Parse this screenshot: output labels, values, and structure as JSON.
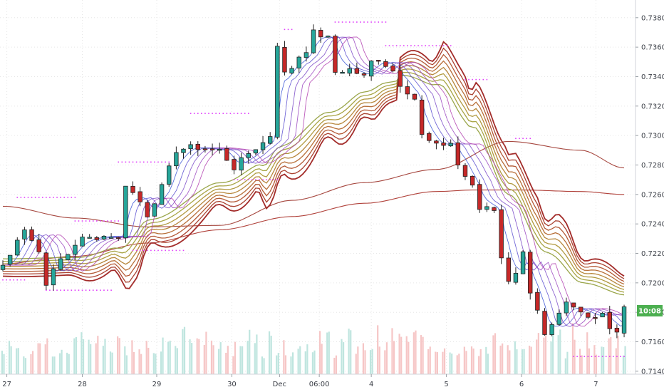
{
  "chart_data": {
    "type": "candlestick",
    "y_ticks": [
      "0.71400",
      "0.71600",
      "0.71800",
      "0.72000",
      "0.72200",
      "0.72400",
      "0.72600",
      "0.72800",
      "0.73000",
      "0.73200",
      "0.73400",
      "0.73600",
      "0.73800"
    ],
    "ylim": [
      0.7138,
      0.7392
    ],
    "x_ticks": [
      {
        "label": "27",
        "t": 0.55
      },
      {
        "label": "28",
        "t": 11.0
      },
      {
        "label": "29",
        "t": 21.3
      },
      {
        "label": "30",
        "t": 31.7
      },
      {
        "label": "Dec",
        "t": 38.3
      },
      {
        "label": "06:00",
        "t": 43.8
      },
      {
        "label": "4",
        "t": 51.0
      },
      {
        "label": "5",
        "t": 61.4
      },
      {
        "label": "6",
        "t": 71.8
      },
      {
        "label": "7",
        "t": 82.1
      }
    ],
    "last_price_badge": "10:08",
    "colors": {
      "up": "#26a69a",
      "down": "#c62828",
      "grid": "#e6e6e6",
      "dots": "#e040fb",
      "badge": "#4caf50",
      "vol_up": "#bfe5df",
      "vol_down": "#f6c6c6"
    },
    "candle_anchors": [
      [
        0,
        0.7212
      ],
      [
        3,
        0.7237
      ],
      [
        5,
        0.7221
      ],
      [
        6,
        0.72
      ],
      [
        8,
        0.7216
      ],
      [
        11,
        0.723
      ],
      [
        15,
        0.7232
      ],
      [
        16,
        0.723
      ],
      [
        17,
        0.7267
      ],
      [
        19,
        0.7255
      ],
      [
        20,
        0.7246
      ],
      [
        22,
        0.7265
      ],
      [
        24,
        0.729
      ],
      [
        26,
        0.7292
      ],
      [
        30,
        0.729
      ],
      [
        32,
        0.7278
      ],
      [
        34,
        0.7288
      ],
      [
        36,
        0.7295
      ],
      [
        37,
        0.73
      ],
      [
        38,
        0.7362
      ],
      [
        39,
        0.7342
      ],
      [
        42,
        0.7358
      ],
      [
        43,
        0.737
      ],
      [
        45,
        0.7366
      ],
      [
        46,
        0.7343
      ],
      [
        48,
        0.7345
      ],
      [
        50,
        0.734
      ],
      [
        51,
        0.735
      ],
      [
        52,
        0.7352
      ],
      [
        54,
        0.7344
      ],
      [
        55,
        0.7335
      ],
      [
        57,
        0.7325
      ],
      [
        58,
        0.73
      ],
      [
        59,
        0.7296
      ],
      [
        60,
        0.7293
      ],
      [
        62,
        0.7295
      ],
      [
        63,
        0.728
      ],
      [
        65,
        0.7265
      ],
      [
        66,
        0.725
      ],
      [
        67,
        0.7252
      ],
      [
        68,
        0.725
      ],
      [
        69,
        0.7218
      ],
      [
        70,
        0.72
      ],
      [
        71,
        0.7208
      ],
      [
        72,
        0.7222
      ],
      [
        73,
        0.7192
      ],
      [
        74,
        0.718
      ],
      [
        75,
        0.7163
      ],
      [
        76,
        0.717
      ],
      [
        77,
        0.7178
      ],
      [
        78,
        0.7186
      ],
      [
        80,
        0.718
      ],
      [
        82,
        0.7177
      ],
      [
        83,
        0.718
      ],
      [
        84,
        0.717
      ],
      [
        85,
        0.7167
      ],
      [
        86,
        0.7183
      ]
    ],
    "ma_slow1_anchors": [
      [
        0,
        0.7252
      ],
      [
        10,
        0.7244
      ],
      [
        20,
        0.7238
      ],
      [
        30,
        0.7239
      ],
      [
        40,
        0.7256
      ],
      [
        50,
        0.7268
      ],
      [
        60,
        0.7277
      ],
      [
        70,
        0.7296
      ],
      [
        80,
        0.729
      ],
      [
        86,
        0.7278
      ]
    ],
    "ma_slow2_anchors": [
      [
        0,
        0.7213
      ],
      [
        10,
        0.7218
      ],
      [
        20,
        0.7227
      ],
      [
        30,
        0.7236
      ],
      [
        40,
        0.7245
      ],
      [
        50,
        0.7254
      ],
      [
        60,
        0.7262
      ],
      [
        65,
        0.7263
      ],
      [
        72,
        0.7263
      ],
      [
        80,
        0.7262
      ],
      [
        86,
        0.726
      ]
    ],
    "ribbon_anchors": [
      [
        0,
        0.7218
      ],
      [
        10,
        0.7219
      ],
      [
        16,
        0.7226
      ],
      [
        20,
        0.7245
      ],
      [
        30,
        0.727
      ],
      [
        36,
        0.7283
      ],
      [
        38,
        0.7295
      ],
      [
        45,
        0.7318
      ],
      [
        50,
        0.7332
      ],
      [
        53,
        0.7338
      ],
      [
        55,
        0.7339
      ],
      [
        60,
        0.7332
      ],
      [
        65,
        0.7302
      ],
      [
        70,
        0.7256
      ],
      [
        75,
        0.7218
      ],
      [
        80,
        0.7198
      ],
      [
        86,
        0.719
      ]
    ],
    "dot_segments": [
      {
        "t0": 0,
        "t1": 3,
        "price": 0.7202
      },
      {
        "t0": 2,
        "t1": 10,
        "price": 0.7258
      },
      {
        "t0": 6,
        "t1": 15,
        "price": 0.7195
      },
      {
        "t0": 10,
        "t1": 16,
        "price": 0.7242
      },
      {
        "t0": 16,
        "t1": 23,
        "price": 0.7282
      },
      {
        "t0": 18,
        "t1": 25,
        "price": 0.7222
      },
      {
        "t0": 26,
        "t1": 34,
        "price": 0.7315
      },
      {
        "t0": 32,
        "t1": 38,
        "price": 0.727
      },
      {
        "t0": 39,
        "t1": 40,
        "price": 0.7372
      },
      {
        "t0": 46,
        "t1": 53,
        "price": 0.7377
      },
      {
        "t0": 53,
        "t1": 62,
        "price": 0.7361
      },
      {
        "t0": 64,
        "t1": 67,
        "price": 0.7338
      },
      {
        "t0": 71,
        "t1": 73,
        "price": 0.7298
      },
      {
        "t0": 79,
        "t1": 86,
        "price": 0.715
      }
    ]
  }
}
